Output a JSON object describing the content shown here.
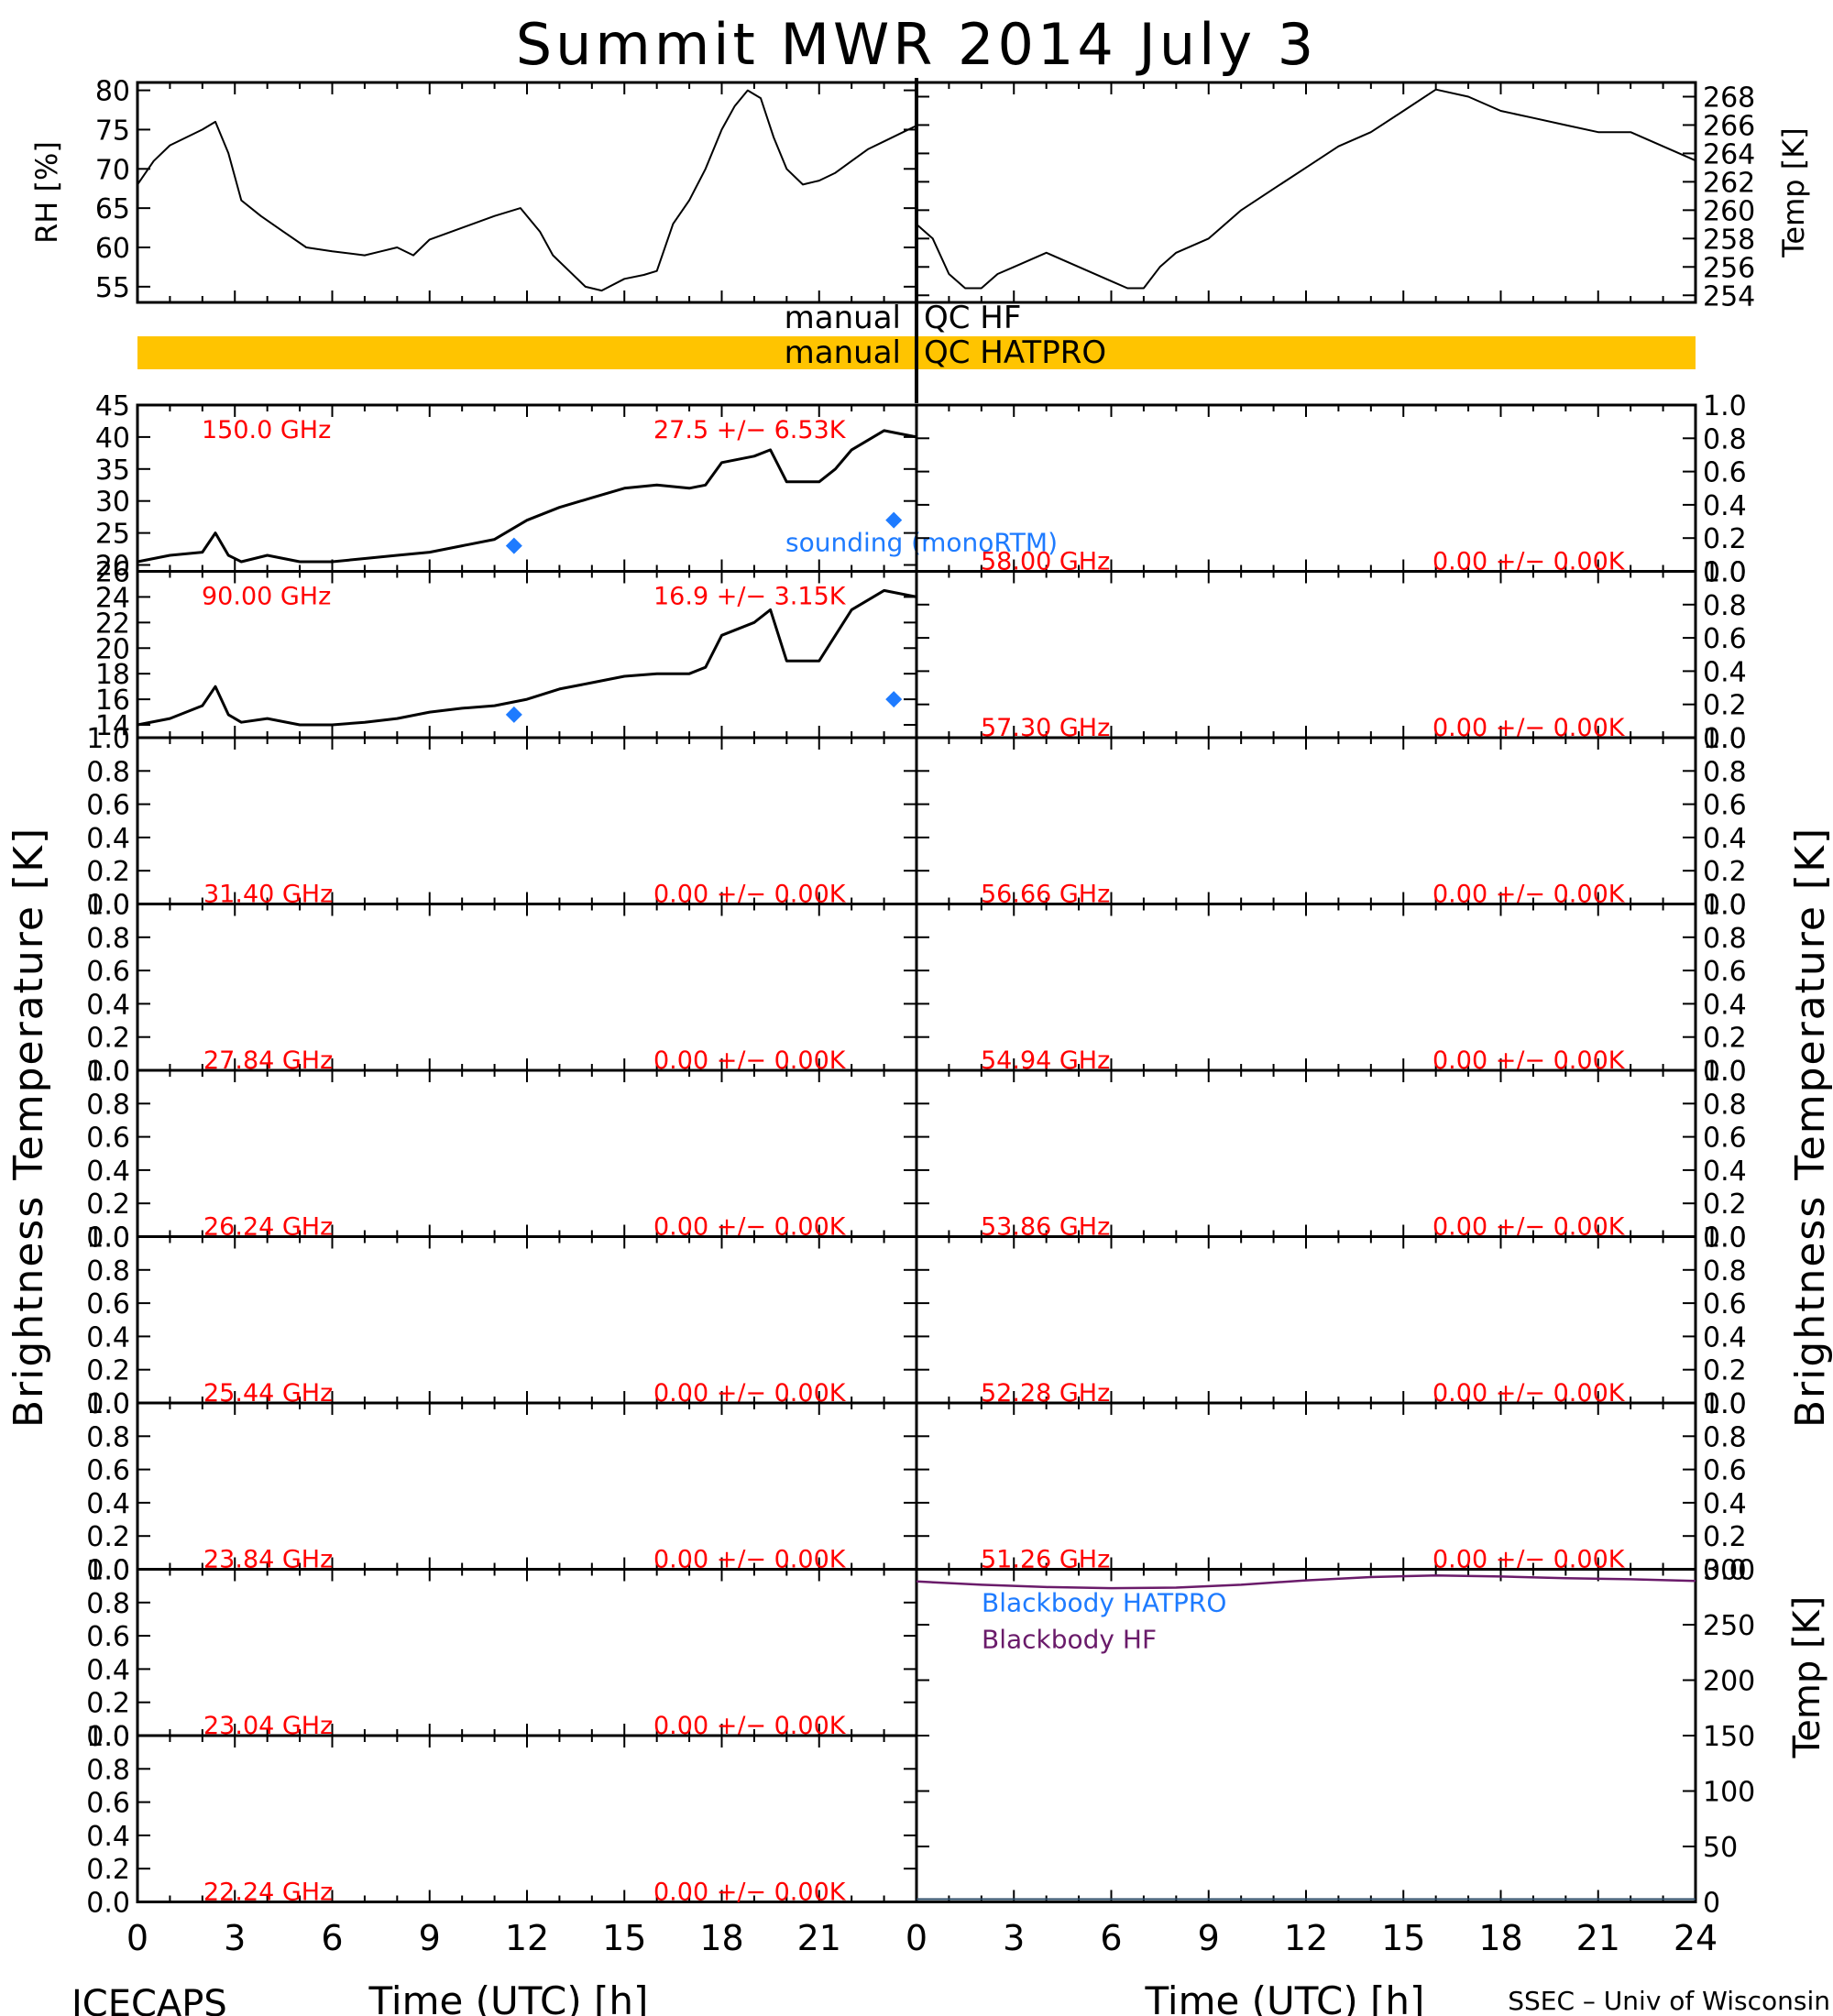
{
  "title": "Summit MWR 2014 July  3",
  "footer_left": "ICECAPS",
  "footer_right": "SSEC – Univ of Wisconsin",
  "xlabel": "Time (UTC) [h]",
  "colors": {
    "annotation": "#ff0000",
    "sounding": "#1e7bff",
    "blackbody_hatpro": "#1e7bff",
    "blackbody_hf": "#6a1b6a",
    "qc_bar": "#ffc400",
    "trace": "#000000"
  },
  "qc": {
    "hf_label_left": "manual",
    "hf_label_right": "QC  HF",
    "hatpro_label_left": "manual",
    "hatpro_label_right": "QC  HATPRO"
  },
  "chart_data": [
    {
      "id": "rh",
      "type": "line",
      "ylabel": "RH [%]",
      "xlim": [
        0,
        24
      ],
      "ylim": [
        53,
        81
      ],
      "yticks": [
        "55",
        "60",
        "65",
        "70",
        "75",
        "80"
      ],
      "x": [
        0,
        0.5,
        1,
        1.5,
        2,
        2.4,
        2.8,
        3.2,
        3.8,
        4.5,
        5.2,
        6,
        7,
        7.5,
        8,
        8.5,
        9,
        10,
        11,
        11.8,
        12.4,
        12.8,
        13.3,
        13.8,
        14.3,
        15,
        15.6,
        16,
        16.5,
        17,
        17.5,
        18,
        18.4,
        18.8,
        19.2,
        19.6,
        20,
        20.5,
        21,
        21.5,
        22,
        22.5,
        23,
        23.5,
        24
      ],
      "y": [
        68,
        71,
        73,
        74,
        75,
        76,
        72,
        66,
        64,
        62,
        60,
        59.5,
        59,
        59.5,
        60,
        59,
        61,
        62.5,
        64,
        65,
        62,
        59,
        57,
        55,
        54.5,
        56,
        56.5,
        57,
        63,
        66,
        70,
        75,
        78,
        80,
        79,
        74,
        70,
        68,
        68.5,
        69.5,
        71,
        72.5,
        73.5,
        74.5,
        75.5
      ]
    },
    {
      "id": "air_temp",
      "type": "line",
      "ylabel": "Temp [K]",
      "xlim": [
        0,
        24
      ],
      "ylim": [
        253.5,
        269
      ],
      "yticks": [
        "254",
        "256",
        "258",
        "260",
        "262",
        "264",
        "266",
        "268"
      ],
      "x": [
        0,
        0.5,
        1,
        1.5,
        2,
        2.5,
        3,
        4,
        5,
        6,
        6.5,
        7,
        7.5,
        8,
        9,
        10,
        11,
        12,
        13,
        14,
        15,
        16,
        17,
        18,
        19,
        20,
        21,
        22,
        23,
        24
      ],
      "y": [
        259,
        258,
        255.5,
        254.5,
        254.5,
        255.5,
        256,
        257,
        256,
        255,
        254.5,
        254.5,
        256,
        257,
        258,
        260,
        261.5,
        263,
        264.5,
        265.5,
        267,
        268.5,
        268,
        267,
        266.5,
        266,
        265.5,
        265.5,
        264.5,
        263.5
      ]
    },
    {
      "id": "hatpro_qc",
      "type": "area",
      "label": "manual QC HATPRO",
      "x": [
        0,
        24
      ],
      "y": [
        1,
        1
      ]
    },
    {
      "id": "tb_150",
      "type": "line",
      "freq_label": "150.0 GHz",
      "stats_label": "27.5 +/−  6.53K",
      "xlim": [
        0,
        24
      ],
      "ylim": [
        19,
        45
      ],
      "yticks": [
        "20",
        "25",
        "30",
        "35",
        "40",
        "45"
      ],
      "x": [
        0,
        1,
        2,
        2.4,
        2.8,
        3.2,
        4,
        5,
        6,
        7,
        8,
        9,
        10,
        11,
        12,
        13,
        14,
        15,
        16,
        17,
        17.5,
        18,
        19,
        19.5,
        20,
        21,
        21.5,
        22,
        23,
        24
      ],
      "y": [
        20.5,
        21.5,
        22,
        25,
        21.5,
        20.5,
        21.5,
        20.5,
        20.5,
        21,
        21.5,
        22,
        23,
        24,
        27,
        29,
        30.5,
        32,
        32.5,
        32,
        32.5,
        36,
        37,
        38,
        33,
        33,
        35,
        38,
        41,
        40
      ],
      "sounding": {
        "label": "sounding (monoRTM)",
        "x": [
          11.6,
          23.3
        ],
        "y": [
          23,
          27
        ]
      }
    },
    {
      "id": "tb_90",
      "type": "line",
      "freq_label": "90.00 GHz",
      "stats_label": "16.9 +/−  3.15K",
      "xlim": [
        0,
        24
      ],
      "ylim": [
        13,
        26
      ],
      "yticks": [
        "14",
        "16",
        "18",
        "20",
        "22",
        "24",
        "26"
      ],
      "x": [
        0,
        1,
        2,
        2.4,
        2.8,
        3.2,
        4,
        5,
        6,
        7,
        8,
        9,
        10,
        11,
        12,
        13,
        14,
        15,
        16,
        17,
        17.5,
        18,
        19,
        19.5,
        20,
        21,
        21.5,
        22,
        23,
        24
      ],
      "y": [
        14,
        14.5,
        15.5,
        17,
        14.8,
        14.2,
        14.5,
        14,
        14,
        14.2,
        14.5,
        15,
        15.3,
        15.5,
        16,
        16.8,
        17.3,
        17.8,
        18,
        18,
        18.5,
        21,
        22,
        23,
        19,
        19,
        21,
        23,
        24.5,
        24
      ],
      "sounding": {
        "label": "",
        "x": [
          11.6,
          23.3
        ],
        "y": [
          14.8,
          16
        ]
      }
    },
    {
      "id": "tb_31_40",
      "type": "line",
      "freq_label": "31.40 GHz",
      "stats_label": "0.00 +/−  0.00K",
      "ylim": [
        0,
        1
      ],
      "x": [],
      "y": []
    },
    {
      "id": "tb_27_84",
      "type": "line",
      "freq_label": "27.84 GHz",
      "stats_label": "0.00 +/−  0.00K",
      "ylim": [
        0,
        1
      ],
      "x": [],
      "y": []
    },
    {
      "id": "tb_26_24",
      "type": "line",
      "freq_label": "26.24 GHz",
      "stats_label": "0.00 +/−  0.00K",
      "ylim": [
        0,
        1
      ],
      "x": [],
      "y": []
    },
    {
      "id": "tb_25_44",
      "type": "line",
      "freq_label": "25.44 GHz",
      "stats_label": "0.00 +/−  0.00K",
      "ylim": [
        0,
        1
      ],
      "x": [],
      "y": []
    },
    {
      "id": "tb_23_84",
      "type": "line",
      "freq_label": "23.84 GHz",
      "stats_label": "0.00 +/−  0.00K",
      "ylim": [
        0,
        1
      ],
      "x": [],
      "y": []
    },
    {
      "id": "tb_23_04",
      "type": "line",
      "freq_label": "23.04 GHz",
      "stats_label": "0.00 +/−  0.00K",
      "ylim": [
        0,
        1
      ],
      "x": [],
      "y": []
    },
    {
      "id": "tb_22_24",
      "type": "line",
      "freq_label": "22.24 GHz",
      "stats_label": "0.00 +/−  0.00K",
      "ylim": [
        0,
        1
      ],
      "x": [],
      "y": []
    },
    {
      "id": "tb_58_00",
      "type": "line",
      "freq_label": "58.00 GHz",
      "stats_label": "0.00 +/−  0.00K",
      "ylim": [
        0,
        1
      ],
      "x": [],
      "y": []
    },
    {
      "id": "tb_57_30",
      "type": "line",
      "freq_label": "57.30 GHz",
      "stats_label": "0.00 +/−  0.00K",
      "ylim": [
        0,
        1
      ],
      "x": [],
      "y": []
    },
    {
      "id": "tb_56_66",
      "type": "line",
      "freq_label": "56.66 GHz",
      "stats_label": "0.00 +/−  0.00K",
      "ylim": [
        0,
        1
      ],
      "x": [],
      "y": []
    },
    {
      "id": "tb_54_94",
      "type": "line",
      "freq_label": "54.94 GHz",
      "stats_label": "0.00 +/−  0.00K",
      "ylim": [
        0,
        1
      ],
      "x": [],
      "y": []
    },
    {
      "id": "tb_53_86",
      "type": "line",
      "freq_label": "53.86 GHz",
      "stats_label": "0.00 +/−  0.00K",
      "ylim": [
        0,
        1
      ],
      "x": [],
      "y": []
    },
    {
      "id": "tb_52_28",
      "type": "line",
      "freq_label": "52.28 GHz",
      "stats_label": "0.00 +/−  0.00K",
      "ylim": [
        0,
        1
      ],
      "x": [],
      "y": []
    },
    {
      "id": "tb_51_26",
      "type": "line",
      "freq_label": "51.26 GHz",
      "stats_label": "0.00 +/−  0.00K",
      "ylim": [
        0,
        1
      ],
      "x": [],
      "y": []
    },
    {
      "id": "blackbody",
      "type": "line",
      "ylabel": "Temp [K]",
      "xlim": [
        0,
        24
      ],
      "ylim": [
        0,
        300
      ],
      "yticks": [
        "0",
        "50",
        "100",
        "150",
        "200",
        "250",
        "300"
      ],
      "series": [
        {
          "name": "Blackbody HATPRO",
          "x": [],
          "y": []
        },
        {
          "name": "Blackbody HF",
          "x": [
            0,
            2,
            4,
            6,
            8,
            10,
            12,
            14,
            16,
            18,
            20,
            22,
            24
          ],
          "y": [
            289,
            286,
            284,
            283,
            283.5,
            286,
            290,
            293,
            294.5,
            293.5,
            292,
            291,
            289.5
          ]
        }
      ]
    }
  ],
  "tb_axis_ticks": [
    "0.0",
    "0.2",
    "0.4",
    "0.6",
    "0.8",
    "1.0"
  ],
  "tb_ylabel": "Brightness Temperature [K]",
  "x_ticks": [
    "0",
    "3",
    "6",
    "9",
    "12",
    "15",
    "18",
    "21"
  ],
  "x_ticks_right": [
    "0",
    "3",
    "6",
    "9",
    "12",
    "15",
    "18",
    "21",
    "24"
  ]
}
